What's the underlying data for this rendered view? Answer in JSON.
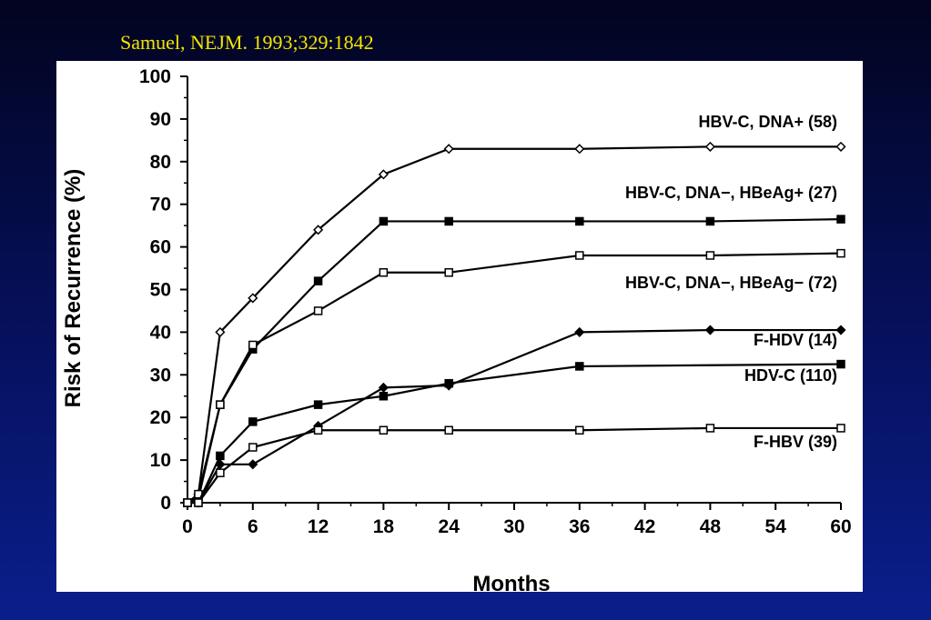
{
  "slide": {
    "citation": "Samuel, NEJM. 1993;329:1842",
    "colors": {
      "background_top": "#02041f",
      "background_bottom": "#0a1e8c",
      "citation": "#f2e600",
      "panel": "#ffffff"
    }
  },
  "chart_data": {
    "type": "line",
    "title": "",
    "xlabel": "Months",
    "ylabel": "Risk of Recurrence (%)",
    "xlim": [
      0,
      60
    ],
    "ylim": [
      0,
      100
    ],
    "xticks": [
      0,
      6,
      12,
      18,
      24,
      30,
      36,
      42,
      48,
      54,
      60
    ],
    "yticks": [
      0,
      10,
      20,
      30,
      40,
      50,
      60,
      70,
      80,
      90,
      100
    ],
    "grid": false,
    "legend": "direct labels at right ends of lines",
    "series": [
      {
        "name": "HBV-C, DNA+ (58)",
        "marker": "open-diamond",
        "x": [
          0,
          1,
          3,
          6,
          12,
          18,
          24,
          36,
          48,
          60
        ],
        "y": [
          0,
          2,
          40,
          48,
          64,
          77,
          83,
          83,
          83.5,
          83.5
        ]
      },
      {
        "name": "HBV-C, DNA−, HBeAg+ (27)",
        "marker": "filled-square",
        "x": [
          0,
          1,
          3,
          6,
          12,
          18,
          24,
          36,
          48,
          60
        ],
        "y": [
          0,
          1,
          23,
          36,
          52,
          66,
          66,
          66,
          66,
          66.5
        ]
      },
      {
        "name": "HBV-C, DNA−, HBeAg− (72)",
        "marker": "open-square",
        "x": [
          0,
          1,
          3,
          6,
          12,
          18,
          24,
          36,
          48,
          60
        ],
        "y": [
          0,
          2,
          23,
          37,
          45,
          54,
          54,
          58,
          58,
          58.5
        ]
      },
      {
        "name": "F-HDV (14)",
        "marker": "filled-diamond",
        "x": [
          0,
          1,
          3,
          6,
          12,
          18,
          24,
          36,
          48,
          60
        ],
        "y": [
          0,
          0,
          9,
          9,
          18,
          27,
          27.5,
          40,
          40.5,
          40.5
        ]
      },
      {
        "name": "HDV-C (110)",
        "marker": "filled-square",
        "x": [
          0,
          1,
          3,
          6,
          12,
          18,
          24,
          36,
          60
        ],
        "y": [
          0,
          0,
          11,
          19,
          23,
          25,
          28,
          32,
          32.5
        ]
      },
      {
        "name": "F-HBV (39)",
        "marker": "open-square",
        "x": [
          0,
          1,
          3,
          6,
          12,
          18,
          24,
          36,
          48,
          60
        ],
        "y": [
          0,
          0,
          7,
          13,
          17,
          17,
          17,
          17,
          17.5,
          17.5
        ]
      }
    ]
  }
}
